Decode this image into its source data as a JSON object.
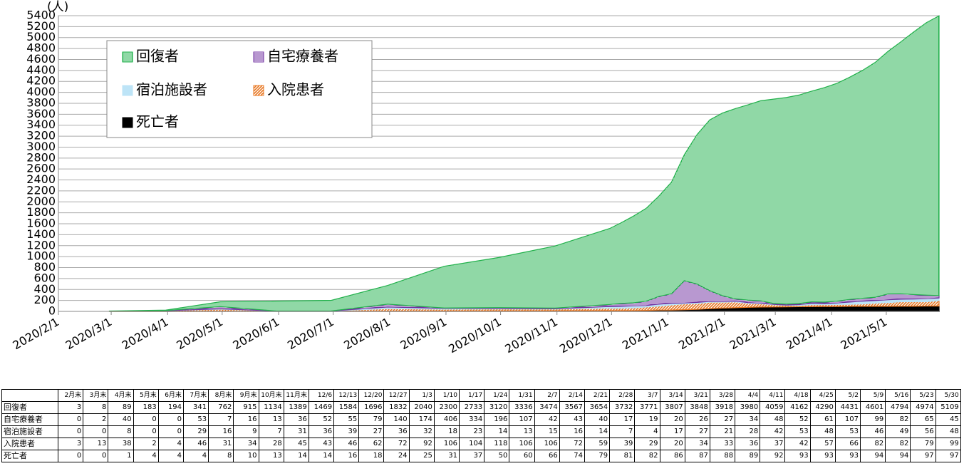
{
  "chart_data": {
    "type": "stacked_area",
    "y_label": "(人)",
    "x": [
      "2020/2/29",
      "2020/3/31",
      "2020/4/30",
      "2020/5/31",
      "2020/6/30",
      "2020/7/31",
      "2020/8/31",
      "2020/9/30",
      "2020/10/31",
      "2020/11/30",
      "2020/12/6",
      "2020/12/13",
      "2020/12/20",
      "2020/12/27",
      "2021/1/3",
      "2021/1/10",
      "2021/1/17",
      "2021/1/24",
      "2021/1/31",
      "2021/2/7",
      "2021/2/14",
      "2021/2/21",
      "2021/2/28",
      "2021/3/7",
      "2021/3/14",
      "2021/3/21",
      "2021/3/28",
      "2021/4/4",
      "2021/4/11",
      "2021/4/18",
      "2021/4/25",
      "2021/5/2",
      "2021/5/9",
      "2021/5/16",
      "2021/5/23",
      "2021/5/30"
    ],
    "series": [
      {
        "name": "回復者",
        "color": "#22b14c",
        "pattern": "vertical",
        "values": [
          3,
          8,
          89,
          183,
          194,
          341,
          762,
          915,
          1134,
          1389,
          1469,
          1584,
          1696,
          1832,
          2040,
          2300,
          2733,
          3120,
          3336,
          3474,
          3567,
          3654,
          3732,
          3771,
          3807,
          3848,
          3918,
          3980,
          4059,
          4162,
          4290,
          4431,
          4601,
          4794,
          4974,
          5109
        ]
      },
      {
        "name": "自宅療養者",
        "color": "#7030a0",
        "pattern": "horizontal",
        "values": [
          0,
          2,
          40,
          0,
          0,
          53,
          7,
          16,
          13,
          36,
          52,
          55,
          79,
          140,
          174,
          406,
          334,
          196,
          107,
          42,
          43,
          40,
          17,
          19,
          20,
          26,
          27,
          34,
          48,
          52,
          61,
          107,
          99,
          82,
          65,
          45
        ]
      },
      {
        "name": "宿泊施設者",
        "color": "#bde4f7",
        "pattern": "solid",
        "values": [
          0,
          0,
          8,
          0,
          0,
          29,
          16,
          9,
          7,
          31,
          36,
          39,
          27,
          36,
          32,
          18,
          23,
          14,
          13,
          15,
          16,
          14,
          7,
          4,
          17,
          27,
          21,
          28,
          42,
          53,
          48,
          53,
          46,
          49,
          56,
          48
        ]
      },
      {
        "name": "入院患者",
        "color": "#e87722",
        "pattern": "diagonal",
        "values": [
          3,
          13,
          38,
          2,
          4,
          46,
          31,
          34,
          28,
          45,
          43,
          46,
          62,
          72,
          92,
          106,
          104,
          118,
          106,
          106,
          72,
          59,
          39,
          29,
          20,
          34,
          33,
          36,
          37,
          42,
          57,
          66,
          82,
          82,
          79,
          99
        ]
      },
      {
        "name": "死亡者",
        "color": "#000000",
        "pattern": "solid",
        "values": [
          0,
          0,
          1,
          4,
          4,
          4,
          8,
          10,
          13,
          14,
          14,
          16,
          18,
          24,
          25,
          31,
          37,
          50,
          60,
          66,
          74,
          79,
          81,
          82,
          86,
          87,
          88,
          89,
          92,
          93,
          93,
          93,
          94,
          94,
          97,
          97
        ]
      }
    ],
    "xlim": [
      "2020/2/1",
      "2021/5/30"
    ],
    "xticks": [
      "2020/2/1",
      "2020/3/1",
      "2020/4/1",
      "2020/5/1",
      "2020/6/1",
      "2020/7/1",
      "2020/8/1",
      "2020/9/1",
      "2020/10/1",
      "2020/11/1",
      "2020/12/1",
      "2021/1/1",
      "2021/2/1",
      "2021/3/1",
      "2021/4/1",
      "2021/5/1"
    ],
    "ylim": [
      0,
      5400
    ],
    "yticks": [
      0,
      200,
      400,
      600,
      800,
      1000,
      1200,
      1400,
      1600,
      1800,
      2000,
      2200,
      2400,
      2600,
      2800,
      3000,
      3200,
      3400,
      3600,
      3800,
      4000,
      4200,
      4400,
      4600,
      4800,
      5000,
      5200,
      5400
    ],
    "grid": true
  },
  "table": {
    "columns": [
      "2月末",
      "3月末",
      "4月末",
      "5月末",
      "6月末",
      "7月末",
      "8月末",
      "9月末",
      "10月末",
      "11月末",
      "12/6",
      "12/13",
      "12/20",
      "12/27",
      "1/3",
      "1/10",
      "1/17",
      "1/24",
      "1/31",
      "2/7",
      "2/14",
      "2/21",
      "2/28",
      "3/7",
      "3/14",
      "3/21",
      "3/28",
      "4/4",
      "4/11",
      "4/18",
      "4/25",
      "5/2",
      "5/9",
      "5/16",
      "5/23",
      "5/30"
    ],
    "rows": [
      {
        "name": "回復者",
        "values": [
          3,
          8,
          89,
          183,
          194,
          341,
          762,
          915,
          1134,
          1389,
          1469,
          1584,
          1696,
          1832,
          2040,
          2300,
          2733,
          3120,
          3336,
          3474,
          3567,
          3654,
          3732,
          3771,
          3807,
          3848,
          3918,
          3980,
          4059,
          4162,
          4290,
          4431,
          4601,
          4794,
          4974,
          5109
        ]
      },
      {
        "name": "自宅療養者",
        "values": [
          0,
          2,
          40,
          0,
          0,
          53,
          7,
          16,
          13,
          36,
          52,
          55,
          79,
          140,
          174,
          406,
          334,
          196,
          107,
          42,
          43,
          40,
          17,
          19,
          20,
          26,
          27,
          34,
          48,
          52,
          61,
          107,
          99,
          82,
          65,
          45
        ]
      },
      {
        "name": "宿泊施設者",
        "values": [
          0,
          0,
          8,
          0,
          0,
          29,
          16,
          9,
          7,
          31,
          36,
          39,
          27,
          36,
          32,
          18,
          23,
          14,
          13,
          15,
          16,
          14,
          7,
          4,
          17,
          27,
          21,
          28,
          42,
          53,
          48,
          53,
          46,
          49,
          56,
          48
        ]
      },
      {
        "name": "入院患者",
        "values": [
          3,
          13,
          38,
          2,
          4,
          46,
          31,
          34,
          28,
          45,
          43,
          46,
          62,
          72,
          92,
          106,
          104,
          118,
          106,
          106,
          72,
          59,
          39,
          29,
          20,
          34,
          33,
          36,
          37,
          42,
          57,
          66,
          82,
          82,
          79,
          99
        ]
      },
      {
        "name": "死亡者",
        "values": [
          0,
          0,
          1,
          4,
          4,
          4,
          8,
          10,
          13,
          14,
          14,
          16,
          18,
          24,
          25,
          31,
          37,
          50,
          60,
          66,
          74,
          79,
          81,
          82,
          86,
          87,
          88,
          89,
          92,
          93,
          93,
          93,
          94,
          94,
          97,
          97
        ]
      }
    ]
  }
}
